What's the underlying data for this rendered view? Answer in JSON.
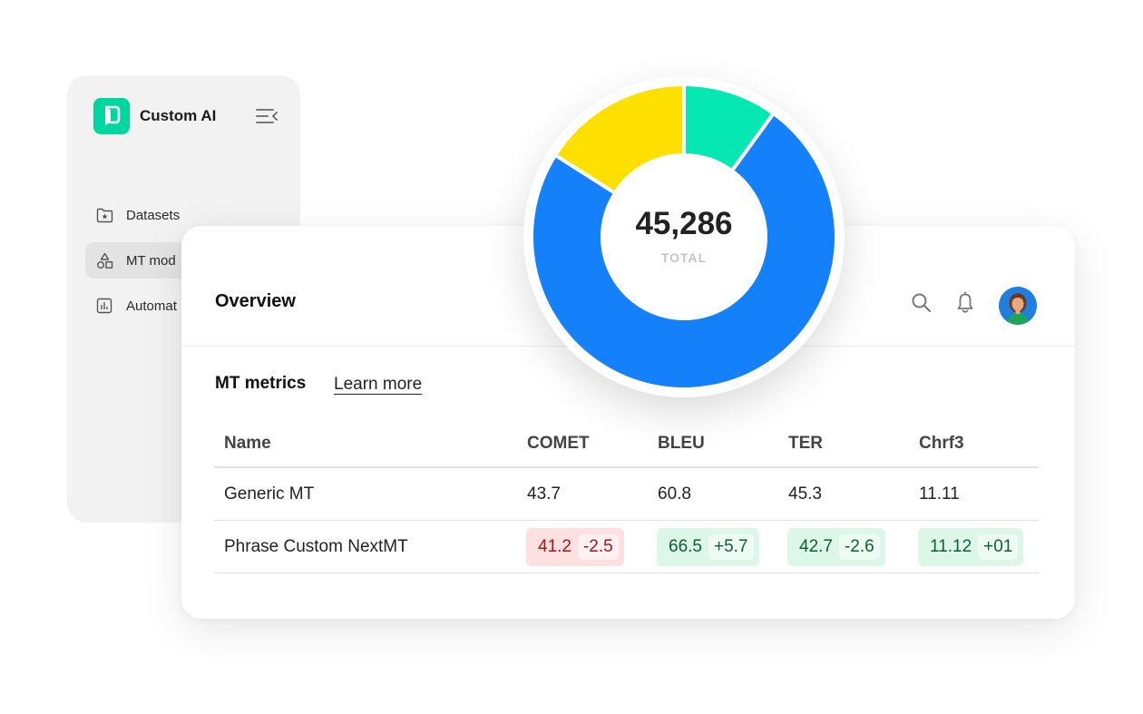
{
  "brand": {
    "name": "Custom AI"
  },
  "sidebar": {
    "items": [
      {
        "label": "Datasets",
        "icon": "folder-star-icon",
        "active": false
      },
      {
        "label": "MT mod",
        "icon": "shapes-icon",
        "active": true
      },
      {
        "label": "Automat",
        "icon": "bar-chart-icon",
        "active": false
      }
    ]
  },
  "header": {
    "title": "Overview"
  },
  "metrics": {
    "title": "MT metrics",
    "learn_more": "Learn more",
    "columns": [
      "Name",
      "COMET",
      "BLEU",
      "TER",
      "Chrf3"
    ],
    "rows": [
      {
        "name": "Generic MT",
        "cells": [
          {
            "value": "43.7"
          },
          {
            "value": "60.8"
          },
          {
            "value": "45.3"
          },
          {
            "value": "11.11"
          }
        ]
      },
      {
        "name": "Phrase Custom NextMT",
        "cells": [
          {
            "value": "41.2",
            "delta": "-2.5",
            "status": "negative"
          },
          {
            "value": "66.5",
            "delta": "+5.7",
            "status": "positive"
          },
          {
            "value": "42.7",
            "delta": "-2.6",
            "status": "positive"
          },
          {
            "value": "11.12",
            "delta": "+01",
            "status": "positive"
          }
        ]
      }
    ]
  },
  "colors": {
    "brand": "#00d6a0",
    "chart_blue": "#1480f9",
    "chart_green": "#06e8b4",
    "chart_yellow": "#fee000",
    "negative_bg": "#fde0df",
    "positive_bg": "#dcf7e7"
  },
  "chart_data": {
    "type": "pie",
    "center_value": "45,286",
    "center_label": "TOTAL",
    "slices": [
      {
        "color": "#06e8b4",
        "share": 0.1
      },
      {
        "color": "#1480f9",
        "share": 0.74
      },
      {
        "color": "#fee000",
        "share": 0.16
      }
    ]
  }
}
